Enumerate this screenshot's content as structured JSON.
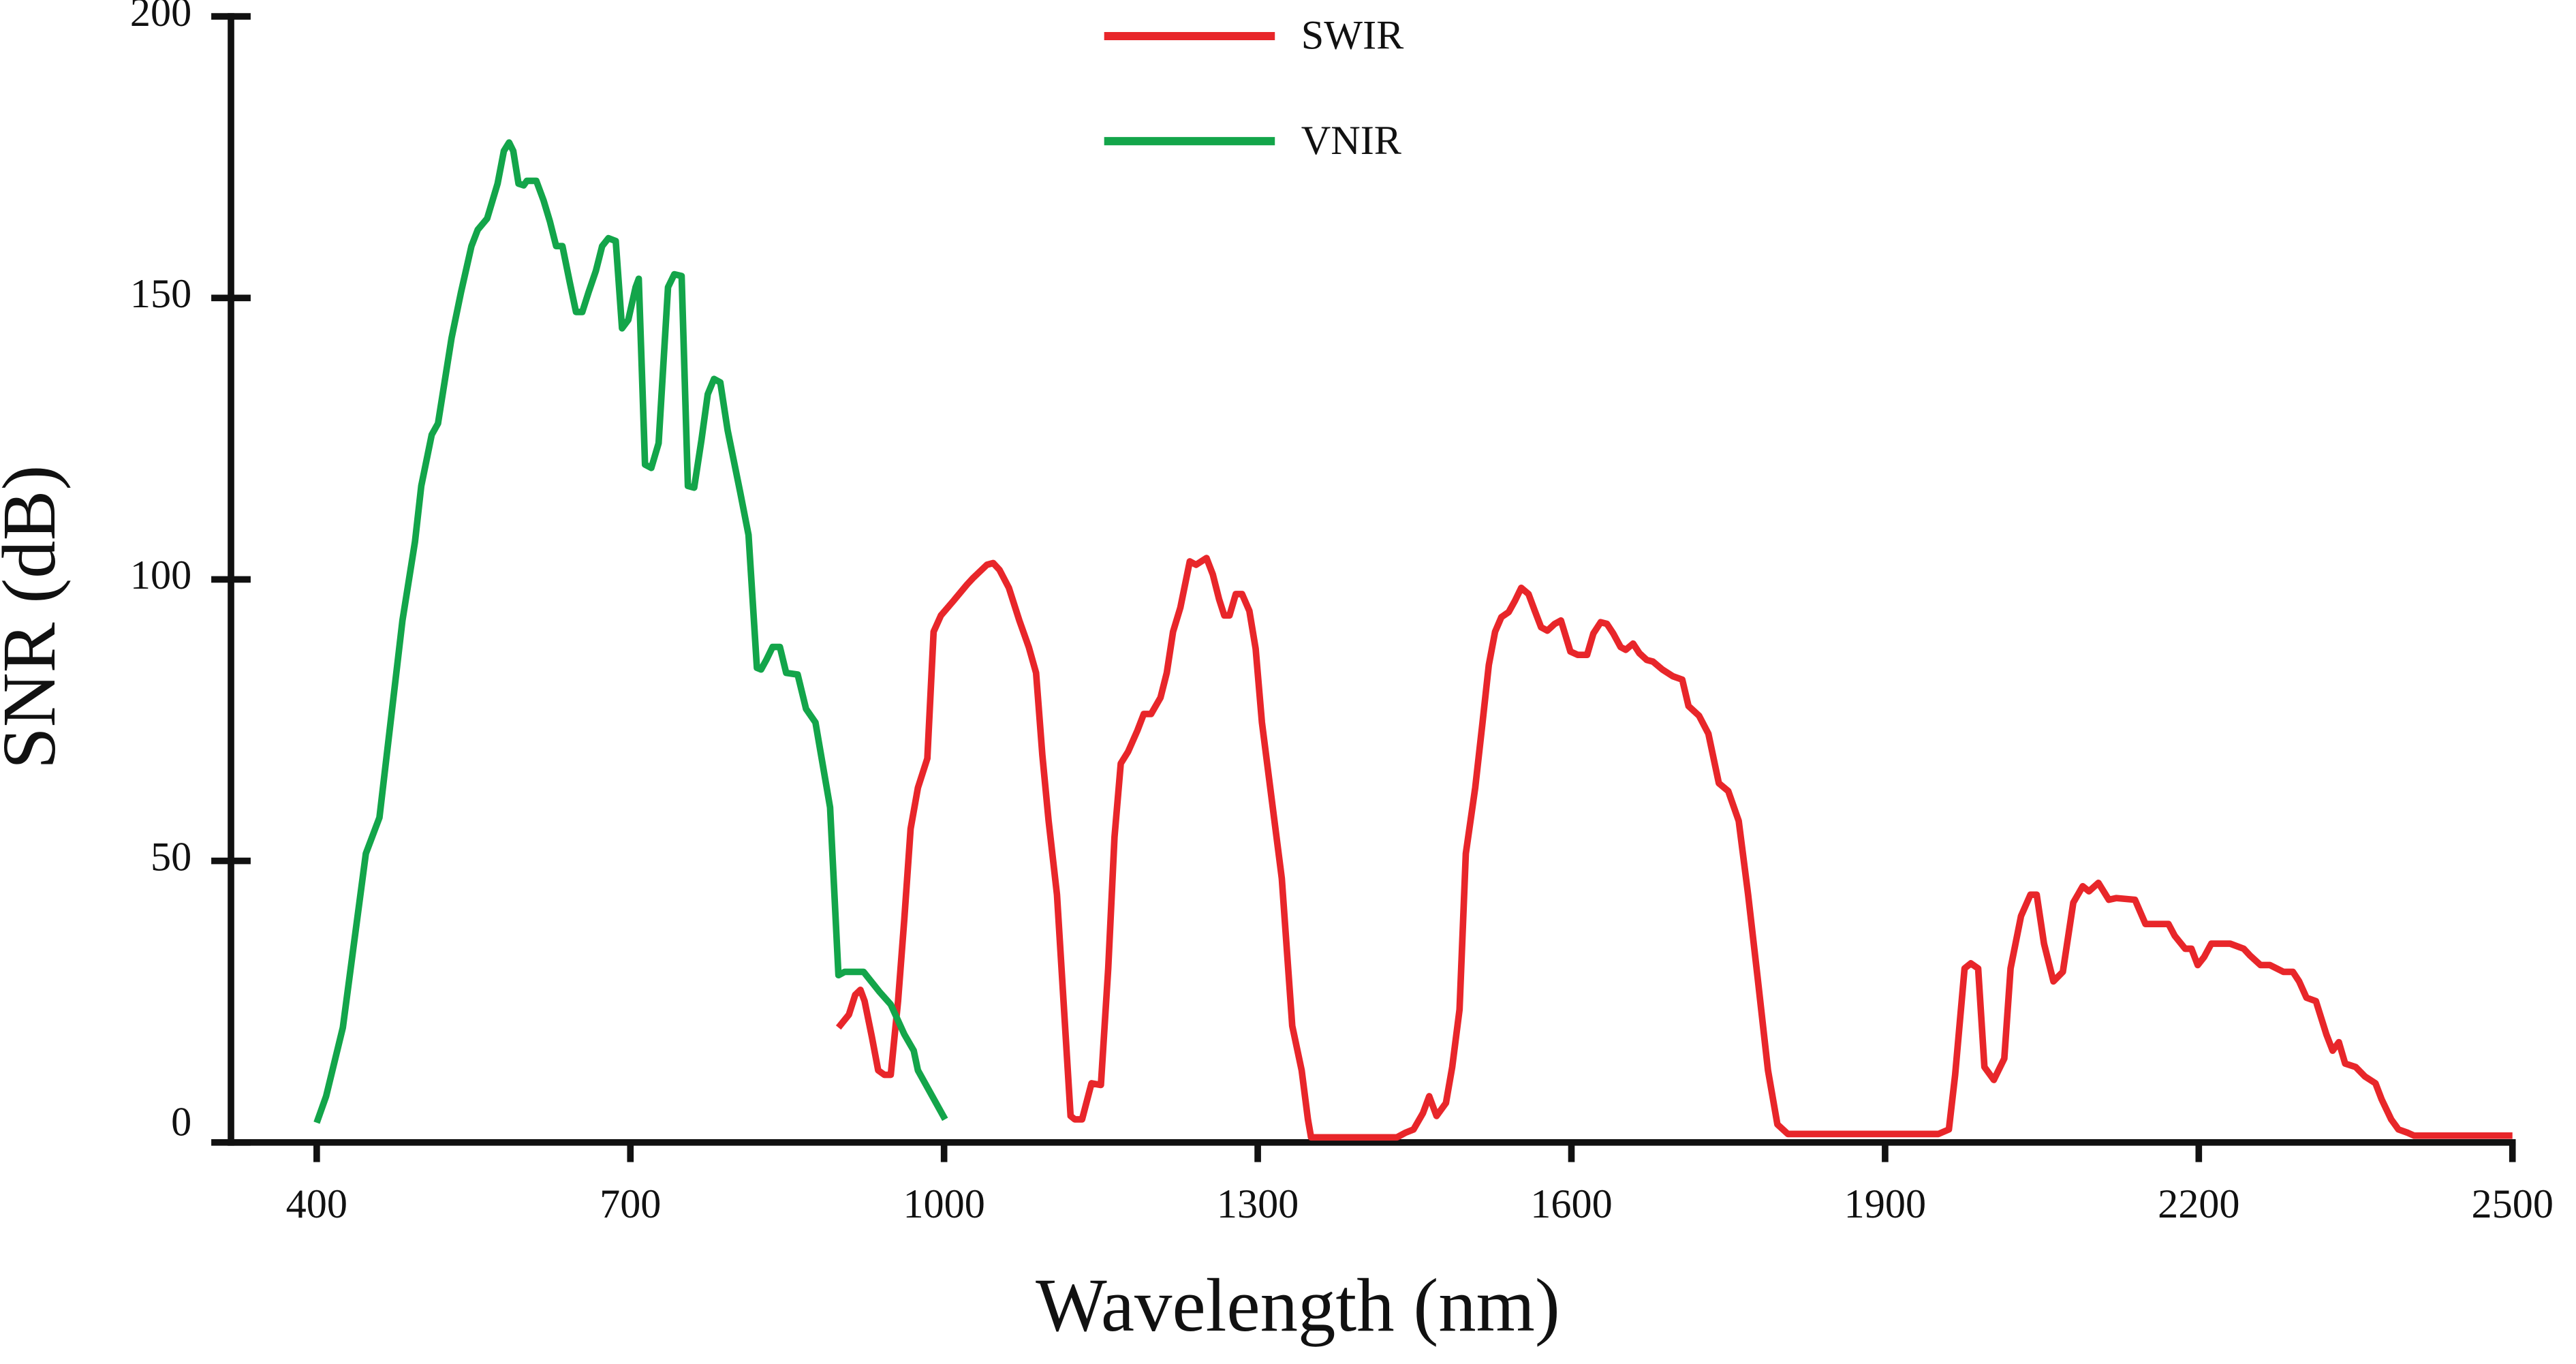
{
  "chart_data": {
    "type": "line",
    "xlabel": "Wavelength (nm)",
    "ylabel": "SNR (dB)",
    "xlim": [
      318,
      2500
    ],
    "ylim": [
      0,
      200
    ],
    "xticks": [
      400,
      700,
      1000,
      1300,
      1600,
      1900,
      2200,
      2500
    ],
    "yticks": [
      0,
      50,
      100,
      150,
      200
    ],
    "legend": "top",
    "series": [
      {
        "name": "SWIR",
        "color": "#e8262a",
        "x": [
          899,
          909,
          915,
          920,
          924,
          931,
          937,
          943,
          949,
          956,
          962,
          968,
          975,
          984,
          990,
          997,
          1009,
          1022,
          1028,
          1041,
          1047,
          1053,
          1062,
          1072,
          1081,
          1088,
          1094,
          1100,
          1108,
          1121,
          1125,
          1132,
          1141,
          1150,
          1157,
          1163,
          1169,
          1176,
          1185,
          1191,
          1198,
          1207,
          1213,
          1219,
          1226,
          1235,
          1241,
          1251,
          1257,
          1263,
          1268,
          1273,
          1279,
          1285,
          1292,
          1298,
          1304,
          1314,
          1323,
          1333,
          1342,
          1348,
          1351,
          1433,
          1441,
          1449,
          1458,
          1464,
          1471,
          1480,
          1486,
          1493,
          1499,
          1508,
          1515,
          1521,
          1527,
          1533,
          1540,
          1546,
          1552,
          1559,
          1565,
          1571,
          1577,
          1584,
          1590,
          1599,
          1606,
          1615,
          1621,
          1628,
          1634,
          1640,
          1647,
          1652,
          1659,
          1665,
          1672,
          1678,
          1687,
          1697,
          1706,
          1712,
          1722,
          1731,
          1741,
          1750,
          1760,
          1769,
          1778,
          1788,
          1797,
          1807,
          1951,
          1961,
          1967,
          1976,
          1982,
          1989,
          1995,
          2004,
          2014,
          2020,
          2030,
          2039,
          2045,
          2052,
          2061,
          2070,
          2080,
          2089,
          2095,
          2104,
          2114,
          2121,
          2139,
          2149,
          2171,
          2177,
          2187,
          2193,
          2199,
          2205,
          2212,
          2230,
          2243,
          2249,
          2259,
          2268,
          2281,
          2290,
          2296,
          2303,
          2312,
          2322,
          2328,
          2334,
          2340,
          2350,
          2359,
          2369,
          2375,
          2384,
          2391,
          2400,
          2406,
          2500
        ],
        "values": [
          20.4,
          22.7,
          26.2,
          27.1,
          25.1,
          18.7,
          12.8,
          12.0,
          12.0,
          25.1,
          39.7,
          55.7,
          63.0,
          68.2,
          90.7,
          93.6,
          96.2,
          99.1,
          100.3,
          102.6,
          102.9,
          101.7,
          98.5,
          92.7,
          88.0,
          83.4,
          68.8,
          57.1,
          44.0,
          4.7,
          4.1,
          4.1,
          10.5,
          10.2,
          30.9,
          54.2,
          67.3,
          69.4,
          73.2,
          76.1,
          76.1,
          79.0,
          83.4,
          90.7,
          95.0,
          103.2,
          102.6,
          103.8,
          100.9,
          96.5,
          93.6,
          93.6,
          97.4,
          97.4,
          94.4,
          87.7,
          74.6,
          60.0,
          46.9,
          20.7,
          12.8,
          4.1,
          0.9,
          0.9,
          1.7,
          2.3,
          5.2,
          8.2,
          4.7,
          7.0,
          13.4,
          23.6,
          51.3,
          63.0,
          74.6,
          84.8,
          90.7,
          93.3,
          94.2,
          96.2,
          98.5,
          97.4,
          94.4,
          91.5,
          90.9,
          92.1,
          92.7,
          87.2,
          86.6,
          86.6,
          90.4,
          92.4,
          92.1,
          90.4,
          88.0,
          87.5,
          88.6,
          86.9,
          85.7,
          85.4,
          84.0,
          82.8,
          82.2,
          77.5,
          75.8,
          72.6,
          63.8,
          62.4,
          57.1,
          44.0,
          29.4,
          12.8,
          3.2,
          1.5,
          1.5,
          2.3,
          12.0,
          30.9,
          31.8,
          30.9,
          13.4,
          11.1,
          14.9,
          30.9,
          40.2,
          44.0,
          44.0,
          35.3,
          28.6,
          30.3,
          42.6,
          45.5,
          44.6,
          46.1,
          43.1,
          43.4,
          43.1,
          38.8,
          38.8,
          36.7,
          34.4,
          34.4,
          31.5,
          32.9,
          35.3,
          35.3,
          34.4,
          33.2,
          31.5,
          31.5,
          30.3,
          30.3,
          28.6,
          25.7,
          25.1,
          19.2,
          16.3,
          17.8,
          14.0,
          13.4,
          11.7,
          10.5,
          7.6,
          4.1,
          2.3,
          1.7,
          1.2,
          1.2
        ]
      },
      {
        "name": "VNIR",
        "color": "#13a54a",
        "x": [
          400,
          409,
          425,
          447,
          460,
          482,
          494,
          500,
          510,
          516,
          529,
          538,
          548,
          554,
          563,
          573,
          579,
          584,
          588,
          593,
          598,
          601,
          610,
          617,
          623,
          629,
          635,
          642,
          648,
          654,
          660,
          667,
          673,
          679,
          686,
          692,
          698,
          705,
          708,
          714,
          720,
          727,
          736,
          742,
          749,
          755,
          761,
          768,
          774,
          780,
          786,
          793,
          805,
          813,
          821,
          825,
          830,
          836,
          843,
          849,
          860,
          868,
          877,
          891,
          899,
          905,
          923,
          938,
          949,
          962,
          971,
          975,
          1001
        ],
        "values": [
          3.5,
          8.2,
          20.4,
          51.3,
          57.7,
          92.7,
          106.7,
          116.6,
          125.7,
          127.7,
          142.9,
          151.0,
          159.2,
          162.1,
          164.1,
          170.3,
          176.1,
          177.6,
          176.1,
          170.3,
          170.0,
          170.8,
          170.8,
          167.3,
          163.6,
          159.2,
          159.2,
          152.8,
          147.5,
          147.5,
          151.0,
          154.8,
          159.2,
          160.6,
          160.1,
          144.6,
          146.1,
          151.9,
          153.4,
          120.4,
          119.8,
          124.2,
          151.9,
          154.2,
          153.9,
          116.6,
          116.3,
          124.8,
          132.9,
          135.6,
          135.0,
          126.5,
          115.5,
          107.9,
          84.3,
          84.0,
          85.7,
          88.0,
          88.0,
          83.4,
          83.1,
          77.0,
          74.6,
          59.5,
          29.7,
          30.3,
          30.3,
          26.8,
          24.5,
          19.2,
          16.3,
          12.8,
          4.1
        ]
      }
    ]
  }
}
